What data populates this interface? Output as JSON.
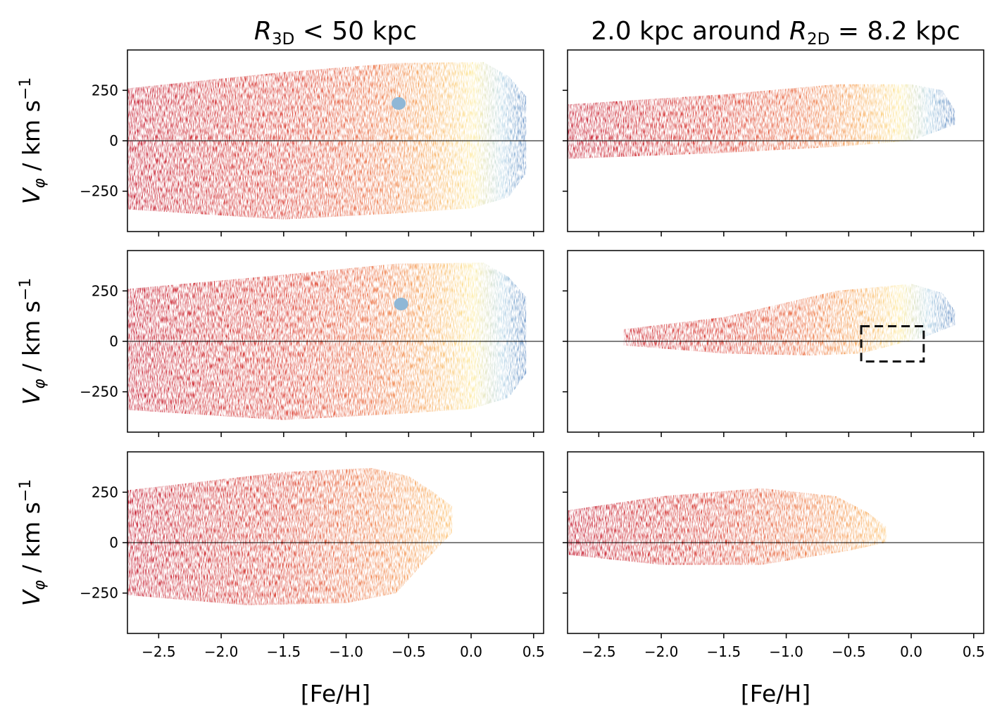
{
  "figure": {
    "column_titles": [
      {
        "math": "R",
        "sub": "3D",
        "rest": " < 50 kpc"
      },
      {
        "pre": "2.0 kpc around ",
        "math": "R",
        "sub": "2D",
        "rest": " = 8.2 kpc"
      }
    ],
    "ylabel": {
      "math": "V",
      "sub": "φ",
      "rest": " / km s",
      "sup": "−1"
    },
    "xlabel": "[Fe/H]",
    "x_ticks": [
      "−2.5",
      "−2.0",
      "−1.5",
      "−1.0",
      "−0.5",
      "0.0",
      "0.5"
    ],
    "y_ticks": [
      "250",
      "0",
      "−250"
    ]
  },
  "chart_data": [
    {
      "type": "heatmap",
      "panel": "row1-left",
      "xlim": [
        -2.75,
        0.58
      ],
      "ylim": [
        -450,
        450
      ],
      "x_ticks": [
        -2.5,
        -2.0,
        -1.5,
        -1.0,
        -0.5,
        0.0,
        0.5
      ],
      "y_ticks": [
        250,
        0,
        -250
      ],
      "zero_line": true,
      "feh_max": 0.47,
      "blob": {
        "feh": -0.58,
        "v": 185
      }
    },
    {
      "type": "heatmap",
      "panel": "row1-right",
      "xlim": [
        -2.75,
        0.58
      ],
      "ylim": [
        -450,
        450
      ],
      "x_ticks": [
        -2.5,
        -2.0,
        -1.5,
        -1.0,
        -0.5,
        0.0,
        0.5
      ],
      "y_ticks": [
        250,
        0,
        -250
      ],
      "zero_line": true,
      "feh_max": 0.35
    },
    {
      "type": "heatmap",
      "panel": "row2-left",
      "xlim": [
        -2.75,
        0.58
      ],
      "ylim": [
        -450,
        450
      ],
      "x_ticks": [
        -2.5,
        -2.0,
        -1.5,
        -1.0,
        -0.5,
        0.0,
        0.5
      ],
      "y_ticks": [
        250,
        0,
        -250
      ],
      "zero_line": true,
      "feh_max": 0.47,
      "blob": {
        "feh": -0.56,
        "v": 185
      }
    },
    {
      "type": "heatmap",
      "panel": "row2-right",
      "xlim": [
        -2.75,
        0.58
      ],
      "ylim": [
        -450,
        450
      ],
      "x_ticks": [
        -2.5,
        -2.0,
        -1.5,
        -1.0,
        -0.5,
        0.0,
        0.5
      ],
      "y_ticks": [
        250,
        0,
        -250
      ],
      "zero_line": true,
      "feh_max": 0.35,
      "box": {
        "x": [
          -0.4,
          0.1
        ],
        "y": [
          -100,
          75
        ]
      }
    },
    {
      "type": "heatmap",
      "panel": "row3-left",
      "xlim": [
        -2.75,
        0.58
      ],
      "ylim": [
        -450,
        450
      ],
      "x_ticks": [
        -2.5,
        -2.0,
        -1.5,
        -1.0,
        -0.5,
        0.0,
        0.5
      ],
      "y_ticks": [
        250,
        0,
        -250
      ],
      "zero_line": true,
      "feh_max": -0.15
    },
    {
      "type": "heatmap",
      "panel": "row3-right",
      "xlim": [
        -2.75,
        0.58
      ],
      "ylim": [
        -450,
        450
      ],
      "x_ticks": [
        -2.5,
        -2.0,
        -1.5,
        -1.0,
        -0.5,
        0.0,
        0.5
      ],
      "y_ticks": [
        250,
        0,
        -250
      ],
      "zero_line": true,
      "feh_max": -0.2
    }
  ]
}
